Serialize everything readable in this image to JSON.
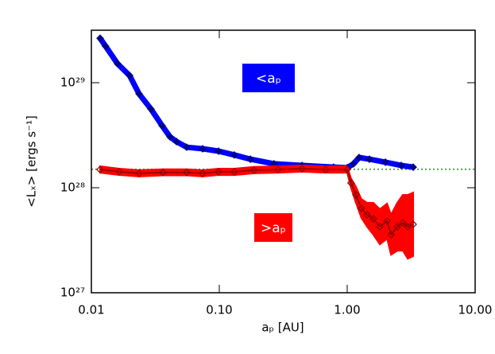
{
  "chart_data": {
    "type": "line",
    "xlabel": "aₚ [AU]",
    "ylabel": "<Lₓ> [ergs s⁻¹]",
    "xscale": "log",
    "yscale": "log",
    "xlim": [
      0.01,
      10
    ],
    "ylim": [
      1e+27,
      3.16e+29
    ],
    "xticks": [
      {
        "value": 0.01,
        "label": "0.01"
      },
      {
        "value": 0.1,
        "label": "0.10"
      },
      {
        "value": 1,
        "label": "1.00"
      },
      {
        "value": 10,
        "label": "10.00"
      }
    ],
    "yticks": [
      {
        "value": 1e+27,
        "label": "10²⁷"
      },
      {
        "value": 1e+28,
        "label": "10²⁸"
      },
      {
        "value": 1e+29,
        "label": "10²⁹"
      }
    ],
    "hline": {
      "value": 1.5e+28,
      "color": "#228b22"
    },
    "series": [
      {
        "name": "<aₚ",
        "color": "#0000ff",
        "marker_color": "#00008b",
        "x": [
          0.0117,
          0.0129,
          0.016,
          0.0199,
          0.0236,
          0.0292,
          0.0357,
          0.0412,
          0.0463,
          0.0556,
          0.0741,
          0.0987,
          0.131,
          0.175,
          0.268,
          0.443,
          0.783,
          1.0,
          1.12,
          1.24,
          1.49,
          1.99,
          2.64,
          3.28
        ],
        "values": [
          2.65e+29,
          2.23e+29,
          1.52e+29,
          1.17e+29,
          7.83e+28,
          5.62e+28,
          3.9e+28,
          3.05e+28,
          2.75e+28,
          2.43e+28,
          2.35e+28,
          2.23e+28,
          2.05e+28,
          1.87e+28,
          1.69e+28,
          1.63e+28,
          1.57e+28,
          1.55e+28,
          1.69e+28,
          1.94e+28,
          1.87e+28,
          1.75e+28,
          1.63e+28,
          1.57e+28
        ]
      },
      {
        "name": ">aₚ",
        "color": "#ff0000",
        "marker_color": "#8b0000",
        "x": [
          0.0117,
          0.0165,
          0.0236,
          0.0362,
          0.0556,
          0.0741,
          0.0987,
          0.131,
          0.187,
          0.288,
          0.443,
          0.679,
          1.0,
          1.07,
          1.17,
          1.29,
          1.43,
          1.6,
          1.8,
          2.05,
          2.2,
          2.46,
          2.72,
          2.97,
          3.28
        ],
        "values": [
          1.49e+28,
          1.42e+28,
          1.37e+28,
          1.4e+28,
          1.4e+28,
          1.37e+28,
          1.42e+28,
          1.42e+28,
          1.47e+28,
          1.49e+28,
          1.52e+28,
          1.49e+28,
          1.49e+28,
          1.11e+28,
          8.55e+27,
          6.35e+27,
          5.53e+27,
          5.07e+27,
          4.25e+27,
          4.81e+27,
          3.57e+27,
          4.25e+27,
          4.64e+27,
          4.25e+27,
          4.48e+27
        ],
        "upper": [
          1.6e+28,
          1.52e+28,
          1.47e+28,
          1.5e+28,
          1.5e+28,
          1.47e+28,
          1.52e+28,
          1.52e+28,
          1.58e+28,
          1.6e+28,
          1.63e+28,
          1.6e+28,
          1.6e+28,
          1.23e+28,
          1.02e+28,
          7.81e+27,
          7.19e+27,
          7.2e+27,
          6.25e+27,
          7.07e+27,
          5.53e+27,
          7.18e+27,
          8.54e+27,
          8.54e+27,
          9e+27
        ],
        "lower": [
          1.39e+28,
          1.32e+28,
          1.28e+28,
          1.31e+28,
          1.31e+28,
          1.28e+28,
          1.32e+28,
          1.32e+28,
          1.37e+28,
          1.39e+28,
          1.42e+28,
          1.39e+28,
          1.39e+28,
          1e+28,
          7.18e+27,
          5.16e+27,
          4.25e+27,
          3.57e+27,
          2.89e+27,
          3.27e+27,
          2.3e+27,
          2.51e+27,
          2.52e+27,
          2.11e+27,
          2.23e+27
        ]
      }
    ]
  }
}
